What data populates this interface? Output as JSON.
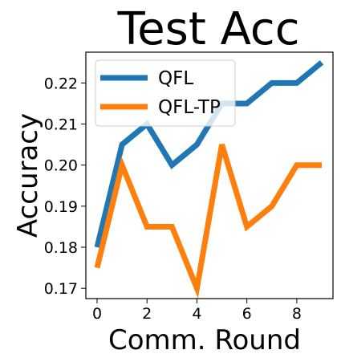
{
  "chart_data": {
    "type": "line",
    "title": "Test Acc",
    "xlabel": "Comm. Round",
    "ylabel": "Accuracy",
    "x": [
      0,
      1,
      2,
      3,
      4,
      5,
      6,
      7,
      8,
      9
    ],
    "xlim": [
      -0.45,
      9.45
    ],
    "ylim": [
      0.1675,
      0.2275
    ],
    "xticks": [
      0,
      2,
      4,
      6,
      8
    ],
    "yticks": [
      0.17,
      0.18,
      0.19,
      0.2,
      0.21,
      0.22
    ],
    "ytick_labels": [
      "0.17",
      "0.18",
      "0.19",
      "0.20",
      "0.21",
      "0.22"
    ],
    "grid": false,
    "legend_position": "upper-left",
    "series": [
      {
        "name": "QFL",
        "color": "#1f77b4",
        "values": [
          0.18,
          0.205,
          0.21,
          0.2,
          0.205,
          0.215,
          0.215,
          0.22,
          0.22,
          0.225
        ]
      },
      {
        "name": "QFL-TP",
        "color": "#ff7f0e",
        "values": [
          0.175,
          0.2,
          0.185,
          0.185,
          0.17,
          0.205,
          0.185,
          0.19,
          0.2,
          0.2
        ]
      }
    ]
  }
}
